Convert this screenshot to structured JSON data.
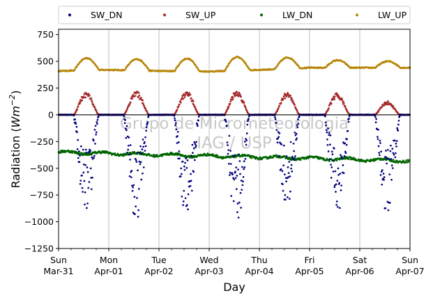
{
  "chart_data": {
    "type": "scatter",
    "title": "",
    "xlabel": "Day",
    "ylabel": "Radiation (Wm⁻²)",
    "ylabel_main": "Radiation (",
    "ylabel_unit": "Wm",
    "ylabel_exp": "−2",
    "ylabel_close": ")",
    "ylim": [
      -1250,
      800
    ],
    "yticks": [
      750,
      500,
      250,
      0,
      -250,
      -500,
      -750,
      -1000,
      -1250
    ],
    "ytick_labels": [
      "750",
      "500",
      "250",
      "0",
      "−250",
      "−500",
      "−750",
      "−1000",
      "−1250"
    ],
    "x_day_range": [
      0,
      7
    ],
    "xticks": [
      {
        "day": "Sun",
        "date": "Mar-31"
      },
      {
        "day": "Mon",
        "date": "Apr-01"
      },
      {
        "day": "Tue",
        "date": "Apr-02"
      },
      {
        "day": "Wed",
        "date": "Apr-03"
      },
      {
        "day": "Thu",
        "date": "Apr-04"
      },
      {
        "day": "Fri",
        "date": "Apr-05"
      },
      {
        "day": "Sat",
        "date": "Apr-06"
      },
      {
        "day": "Sun",
        "date": "Apr-07"
      }
    ],
    "grid": "vertical",
    "legend_position": "top",
    "watermark": [
      "Grupo de Micrometeorologia",
      "IAG / USP"
    ],
    "zero_line": true,
    "series": [
      {
        "name": "SW_DN",
        "color": "#000080",
        "daily_peaks": [
          -900,
          -970,
          -920,
          -1000,
          -840,
          -890,
          -900
        ],
        "noon_frac": 0.55
      },
      {
        "name": "SW_UP",
        "color": "#a52a2a",
        "daily_peaks": [
          200,
          210,
          210,
          215,
          200,
          195,
          120
        ],
        "noon_frac": 0.55
      },
      {
        "name": "LW_DN",
        "color": "#006400",
        "baseline_start": -350,
        "baseline_end": -430
      },
      {
        "name": "LW_UP",
        "color": "#b8860b",
        "night": [
          410,
          420,
          410,
          405,
          420,
          440,
          440
        ],
        "daily_peaks": [
          530,
          520,
          525,
          540,
          535,
          510,
          500
        ],
        "noon_frac": 0.56
      }
    ]
  }
}
